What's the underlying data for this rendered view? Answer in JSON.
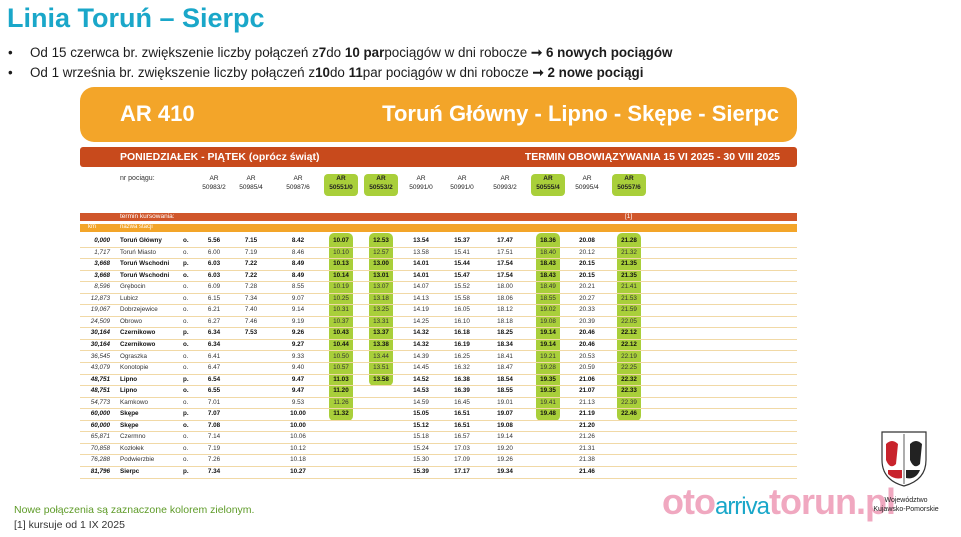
{
  "title": "Linia Toruń – Sierpc",
  "bullets": [
    {
      "pre": "Od 15 czerwca br. zwiększenie liczby połączeń z ",
      "a": "7",
      "mid": " do ",
      "b": "10 par",
      "post": " pociągów w dni robocze ",
      "arrow": "➞",
      "res": "6 nowych pociągów"
    },
    {
      "pre": "Od 1 września br. zwiększenie liczby połączeń z ",
      "a": "10",
      "mid": " do ",
      "b": "11",
      "post": " par pociągów w dni robocze ",
      "arrow": "➞",
      "res": "2 nowe pociągi"
    }
  ],
  "card": {
    "code": "AR 410",
    "route": "Toruń Główny - Lipno - Skępe - Sierpc"
  },
  "day_band": {
    "days": "PONIEDZIAŁEK - PIĄTEK (oprócz świąt)",
    "validity": "TERMIN OBOWIĄZYWANIA 15 VI 2025 - 30 VIII 2025"
  },
  "numer_label": "nr pociągu:",
  "trains": [
    {
      "pfx": "AR",
      "num": "50983/2",
      "new": false
    },
    {
      "pfx": "AR",
      "num": "50985/4",
      "new": false
    },
    {
      "pfx": "AR",
      "num": "50987/6",
      "new": false
    },
    {
      "pfx": "AR",
      "num": "50551/0",
      "new": true
    },
    {
      "pfx": "AR",
      "num": "50553/2",
      "new": true
    },
    {
      "pfx": "AR",
      "num": "50991/0",
      "new": false
    },
    {
      "pfx": "AR",
      "num": "50991/0",
      "new": false
    },
    {
      "pfx": "AR",
      "num": "50993/2",
      "new": false
    },
    {
      "pfx": "AR",
      "num": "50555/4",
      "new": true
    },
    {
      "pfx": "AR",
      "num": "50995/4",
      "new": false
    },
    {
      "pfx": "AR",
      "num": "50557/6",
      "new": true
    }
  ],
  "kursowanie": {
    "label": "termin kursowania:",
    "note": "[1]"
  },
  "station_band": {
    "km": "km",
    "name": "nazwa stacji"
  },
  "rows": [
    {
      "km": "0,000",
      "st": "Toruń Główny",
      "ap": "o.",
      "b": true,
      "t": [
        "5.56",
        "7.15",
        "8.42",
        "10.07",
        "12.53",
        "13.54",
        "15.37",
        "17.47",
        "18.36",
        "20.08",
        "21.28"
      ]
    },
    {
      "km": "1,717",
      "st": "Toruń Miasto",
      "ap": "o.",
      "b": false,
      "t": [
        "6.00",
        "7.19",
        "8.46",
        "10.10",
        "12.57",
        "13.58",
        "15.41",
        "17.51",
        "18.40",
        "20.12",
        "21.32"
      ]
    },
    {
      "km": "3,668",
      "st": "Toruń Wschodni",
      "ap": "p.",
      "b": true,
      "t": [
        "6.03",
        "7.22",
        "8.49",
        "10.13",
        "13.00",
        "14.01",
        "15.44",
        "17.54",
        "18.43",
        "20.15",
        "21.35"
      ]
    },
    {
      "km": "3,668",
      "st": "Toruń Wschodni",
      "ap": "o.",
      "b": true,
      "t": [
        "6.03",
        "7.22",
        "8.49",
        "10.14",
        "13.01",
        "14.01",
        "15.47",
        "17.54",
        "18.43",
        "20.15",
        "21.35"
      ]
    },
    {
      "km": "8,596",
      "st": "Grębocin",
      "ap": "o.",
      "b": false,
      "t": [
        "6.09",
        "7.28",
        "8.55",
        "10.19",
        "13.07",
        "14.07",
        "15.52",
        "18.00",
        "18.49",
        "20.21",
        "21.41"
      ]
    },
    {
      "km": "12,873",
      "st": "Lubicz",
      "ap": "o.",
      "b": false,
      "t": [
        "6.15",
        "7.34",
        "9.07",
        "10.25",
        "13.18",
        "14.13",
        "15.58",
        "18.06",
        "18.55",
        "20.27",
        "21.53"
      ]
    },
    {
      "km": "19,067",
      "st": "Dobrzejewice",
      "ap": "o.",
      "b": false,
      "t": [
        "6.21",
        "7.40",
        "9.14",
        "10.31",
        "13.25",
        "14.19",
        "16.05",
        "18.12",
        "19.02",
        "20.33",
        "21.59"
      ]
    },
    {
      "km": "24,509",
      "st": "Obrowo",
      "ap": "o.",
      "b": false,
      "t": [
        "6.27",
        "7.46",
        "9.19",
        "10.37",
        "13.31",
        "14.25",
        "16.10",
        "18.18",
        "19.08",
        "20.39",
        "22.05"
      ]
    },
    {
      "km": "30,164",
      "st": "Czernikowo",
      "ap": "p.",
      "b": true,
      "t": [
        "6.34",
        "7.53",
        "9.26",
        "10.43",
        "13.37",
        "14.32",
        "16.18",
        "18.25",
        "19.14",
        "20.46",
        "22.12"
      ]
    },
    {
      "km": "30,164",
      "st": "Czernikowo",
      "ap": "o.",
      "b": true,
      "t": [
        "6.34",
        "",
        "9.27",
        "10.44",
        "13.38",
        "14.32",
        "16.19",
        "18.34",
        "19.14",
        "20.46",
        "22.12"
      ]
    },
    {
      "km": "36,545",
      "st": "Ograszka",
      "ap": "o.",
      "b": false,
      "t": [
        "6.41",
        "",
        "9.33",
        "10.50",
        "13.44",
        "14.39",
        "16.25",
        "18.41",
        "19.21",
        "20.53",
        "22.19"
      ]
    },
    {
      "km": "43,079",
      "st": "Konotopie",
      "ap": "o.",
      "b": false,
      "t": [
        "6.47",
        "",
        "9.40",
        "10.57",
        "13.51",
        "14.45",
        "16.32",
        "18.47",
        "19.28",
        "20.59",
        "22.25"
      ]
    },
    {
      "km": "48,751",
      "st": "Lipno",
      "ap": "p.",
      "b": true,
      "t": [
        "6.54",
        "",
        "9.47",
        "11.03",
        "13.58",
        "14.52",
        "16.38",
        "18.54",
        "19.35",
        "21.06",
        "22.32"
      ]
    },
    {
      "km": "48,751",
      "st": "Lipno",
      "ap": "o.",
      "b": true,
      "t": [
        "6.55",
        "",
        "9.47",
        "11.20",
        "",
        "14.53",
        "16.39",
        "18.55",
        "19.35",
        "21.07",
        "22.33"
      ]
    },
    {
      "km": "54,773",
      "st": "Karnkowo",
      "ap": "o.",
      "b": false,
      "t": [
        "7.01",
        "",
        "9.53",
        "11.26",
        "",
        "14.59",
        "16.45",
        "19.01",
        "19.41",
        "21.13",
        "22.39"
      ]
    },
    {
      "km": "60,000",
      "st": "Skępe",
      "ap": "p.",
      "b": true,
      "t": [
        "7.07",
        "",
        "10.00",
        "11.32",
        "",
        "15.05",
        "16.51",
        "19.07",
        "19.48",
        "21.19",
        "22.46"
      ]
    },
    {
      "km": "60,000",
      "st": "Skępe",
      "ap": "o.",
      "b": true,
      "t": [
        "7.08",
        "",
        "10.00",
        "",
        "",
        "15.12",
        "16.51",
        "19.08",
        "",
        "21.20",
        ""
      ]
    },
    {
      "km": "65,871",
      "st": "Czermno",
      "ap": "o.",
      "b": false,
      "t": [
        "7.14",
        "",
        "10.06",
        "",
        "",
        "15.18",
        "16.57",
        "19.14",
        "",
        "21.26",
        ""
      ]
    },
    {
      "km": "70,858",
      "st": "Kozłołek",
      "ap": "o.",
      "b": false,
      "t": [
        "7.19",
        "",
        "10.12",
        "",
        "",
        "15.24",
        "17.03",
        "19.20",
        "",
        "21.31",
        ""
      ]
    },
    {
      "km": "76,288",
      "st": "Podwierzbie",
      "ap": "o.",
      "b": false,
      "t": [
        "7.26",
        "",
        "10.18",
        "",
        "",
        "15.30",
        "17.09",
        "19.26",
        "",
        "21.38",
        ""
      ]
    },
    {
      "km": "81,796",
      "st": "Sierpc",
      "ap": "p.",
      "b": true,
      "t": [
        "7.34",
        "",
        "10.27",
        "",
        "",
        "15.39",
        "17.17",
        "19.34",
        "",
        "21.46",
        ""
      ]
    }
  ],
  "footer": {
    "line1": "Nowe połączenia są zaznaczone kolorem zielonym.",
    "line2": "[1] kursuje od 1 IX 2025"
  },
  "watermark": {
    "text1": "oto",
    "text2": "arriva",
    "text3": "torun.pl"
  },
  "crest_label": {
    "l1": "Województwo",
    "l2": "Kujawsko-Pomorskie"
  },
  "colors": {
    "accent": "#1aa7c9",
    "orange": "#f3a529",
    "rust": "#c84a1c",
    "green": "#a9cf3a"
  }
}
